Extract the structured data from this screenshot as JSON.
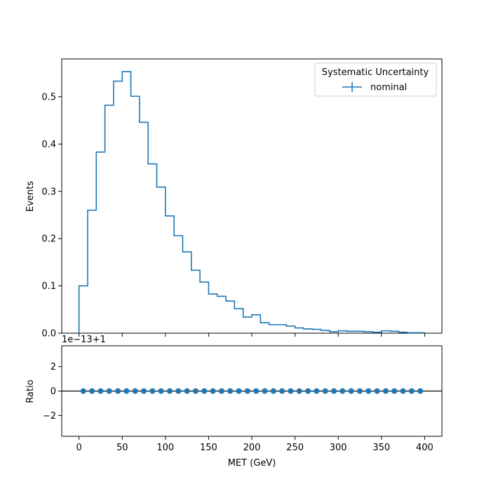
{
  "chart_data": {
    "type": "histogram-with-ratio",
    "colors": {
      "series": "#1f77b4",
      "reference_line": "#000000",
      "frame": "#000000"
    },
    "bin_edges": [
      0,
      10,
      20,
      30,
      40,
      50,
      60,
      70,
      80,
      90,
      100,
      110,
      120,
      130,
      140,
      150,
      160,
      170,
      180,
      190,
      200,
      210,
      220,
      230,
      240,
      250,
      260,
      270,
      280,
      290,
      300,
      310,
      320,
      330,
      340,
      350,
      360,
      370,
      380,
      390,
      400
    ],
    "main_panel": {
      "ylabel": "Events",
      "ylim": [
        0,
        0.58
      ],
      "yticks": [
        0.0,
        0.1,
        0.2,
        0.3,
        0.4,
        0.5
      ],
      "ytick_labels": [
        "0.0",
        "0.1",
        "0.2",
        "0.3",
        "0.4",
        "0.5"
      ],
      "grid": false,
      "series": [
        {
          "name": "nominal",
          "values": [
            0.1,
            0.26,
            0.383,
            0.482,
            0.533,
            0.553,
            0.501,
            0.446,
            0.358,
            0.309,
            0.248,
            0.206,
            0.172,
            0.133,
            0.108,
            0.083,
            0.078,
            0.068,
            0.052,
            0.034,
            0.039,
            0.022,
            0.018,
            0.018,
            0.015,
            0.011,
            0.009,
            0.008,
            0.006,
            0.003,
            0.005,
            0.004,
            0.004,
            0.003,
            0.002,
            0.005,
            0.004,
            0.002,
            0.001,
            0.001
          ]
        }
      ],
      "legend": {
        "title": "Systematic Uncertainty",
        "entries": [
          "nominal"
        ],
        "placement": "top-right"
      }
    },
    "ratio_panel": {
      "ylabel": "Ratio",
      "offset_text": "1e−13+1",
      "ylim": [
        -3.7,
        3.7
      ],
      "yticks": [
        -2,
        0,
        2
      ],
      "ytick_labels": [
        "−2",
        "0",
        "2"
      ],
      "reference_value": 0,
      "points_x": [
        5,
        15,
        25,
        35,
        45,
        55,
        65,
        75,
        85,
        95,
        105,
        115,
        125,
        135,
        145,
        155,
        165,
        175,
        185,
        195,
        205,
        215,
        225,
        235,
        245,
        255,
        265,
        275,
        285,
        295,
        305,
        315,
        325,
        335,
        345,
        355,
        365,
        375,
        385,
        395
      ],
      "points_y": [
        0,
        0,
        0,
        0,
        0,
        0,
        0,
        0,
        0,
        0,
        0,
        0,
        0,
        0,
        0,
        0,
        0,
        0,
        0,
        0,
        0,
        0,
        0,
        0,
        0,
        0,
        0,
        0,
        0,
        0,
        0,
        0,
        0,
        0,
        0,
        0,
        0,
        0,
        0,
        0
      ]
    },
    "xaxis": {
      "label": "MET (GeV)",
      "xlim": [
        -20,
        420
      ],
      "ticks": [
        0,
        50,
        100,
        150,
        200,
        250,
        300,
        350,
        400
      ],
      "tick_labels": [
        "0",
        "50",
        "100",
        "150",
        "200",
        "250",
        "300",
        "350",
        "400"
      ]
    }
  }
}
